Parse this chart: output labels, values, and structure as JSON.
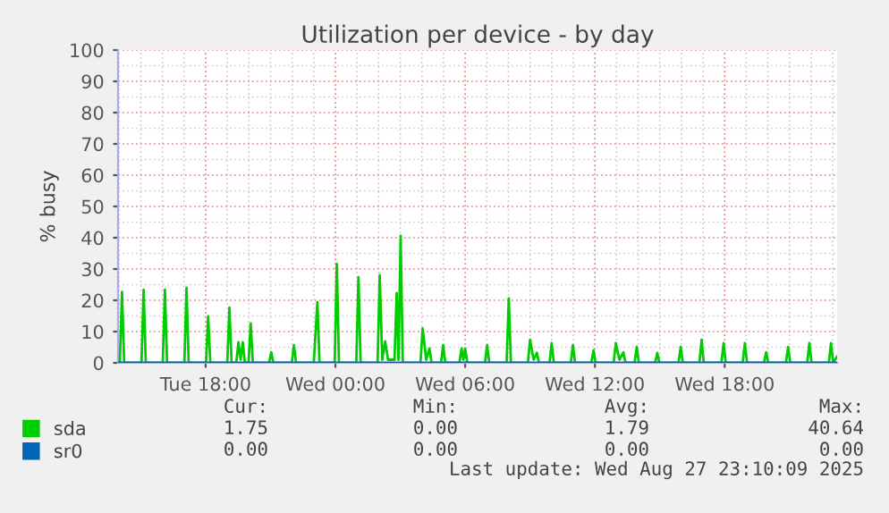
{
  "chart_data": {
    "type": "line",
    "title": "Utilization per device - by day",
    "ylabel": "% busy",
    "xlim": [
      "2025-08-26T13:57",
      "2025-08-27T23:12"
    ],
    "xticks": [
      {
        "value": "2025-08-26T18:00",
        "label": "Tue 18:00"
      },
      {
        "value": "2025-08-27T00:00",
        "label": "Wed 00:00"
      },
      {
        "value": "2025-08-27T06:00",
        "label": "Wed 06:00"
      },
      {
        "value": "2025-08-27T12:00",
        "label": "Wed 12:00"
      },
      {
        "value": "2025-08-27T18:00",
        "label": "Wed 18:00"
      }
    ],
    "ylim": [
      0,
      100
    ],
    "yticks": [
      0,
      10,
      20,
      30,
      40,
      50,
      60,
      70,
      80,
      90,
      100
    ],
    "grid": true,
    "legend": "bottom left",
    "marker": "none",
    "line_style": "solid",
    "series": [
      {
        "name": "sda",
        "color": "#00cc00",
        "x": [
          "2025-08-26T13:57",
          "2025-08-26T14:02",
          "2025-08-26T14:08",
          "2025-08-26T14:14",
          "2025-08-26T15:02",
          "2025-08-26T15:08",
          "2025-08-26T15:14",
          "2025-08-26T16:01",
          "2025-08-26T16:07",
          "2025-08-26T16:13",
          "2025-08-26T17:01",
          "2025-08-26T17:07",
          "2025-08-26T17:13",
          "2025-08-26T18:01",
          "2025-08-26T18:07",
          "2025-08-26T18:13",
          "2025-08-26T19:00",
          "2025-08-26T19:06",
          "2025-08-26T19:12",
          "2025-08-26T19:25",
          "2025-08-26T19:31",
          "2025-08-26T19:37",
          "2025-08-26T19:43",
          "2025-08-26T19:49",
          "2025-08-26T19:59",
          "2025-08-26T20:05",
          "2025-08-26T20:11",
          "2025-08-26T20:56",
          "2025-08-26T21:02",
          "2025-08-26T21:08",
          "2025-08-26T21:59",
          "2025-08-26T22:05",
          "2025-08-26T22:11",
          "2025-08-26T23:00",
          "2025-08-26T23:10",
          "2025-08-26T23:16",
          "2025-08-26T23:58",
          "2025-08-27T00:04",
          "2025-08-27T00:10",
          "2025-08-27T00:58",
          "2025-08-27T01:04",
          "2025-08-27T01:10",
          "2025-08-27T01:57",
          "2025-08-27T02:03",
          "2025-08-27T02:10",
          "2025-08-27T02:18",
          "2025-08-27T02:26",
          "2025-08-27T02:44",
          "2025-08-27T02:50",
          "2025-08-27T02:55",
          "2025-08-27T03:01",
          "2025-08-27T03:07",
          "2025-08-27T03:56",
          "2025-08-27T04:02",
          "2025-08-27T04:12",
          "2025-08-27T04:21",
          "2025-08-27T04:27",
          "2025-08-27T04:53",
          "2025-08-27T04:59",
          "2025-08-27T05:05",
          "2025-08-27T05:44",
          "2025-08-27T05:50",
          "2025-08-27T05:55",
          "2025-08-27T06:00",
          "2025-08-27T06:06",
          "2025-08-27T06:55",
          "2025-08-27T07:01",
          "2025-08-27T07:07",
          "2025-08-27T07:55",
          "2025-08-27T08:01",
          "2025-08-27T08:07",
          "2025-08-27T08:54",
          "2025-08-27T09:00",
          "2025-08-27T09:10",
          "2025-08-27T09:19",
          "2025-08-27T09:25",
          "2025-08-27T09:54",
          "2025-08-27T10:00",
          "2025-08-27T10:06",
          "2025-08-27T10:53",
          "2025-08-27T10:59",
          "2025-08-27T11:05",
          "2025-08-27T11:50",
          "2025-08-27T11:56",
          "2025-08-27T12:02",
          "2025-08-27T12:52",
          "2025-08-27T12:58",
          "2025-08-27T13:08",
          "2025-08-27T13:19",
          "2025-08-27T13:25",
          "2025-08-27T13:50",
          "2025-08-27T13:56",
          "2025-08-27T14:02",
          "2025-08-27T14:47",
          "2025-08-27T14:53",
          "2025-08-27T14:59",
          "2025-08-27T15:52",
          "2025-08-27T15:58",
          "2025-08-27T16:04",
          "2025-08-27T16:50",
          "2025-08-27T16:56",
          "2025-08-27T17:02",
          "2025-08-27T17:51",
          "2025-08-27T17:57",
          "2025-08-27T18:03",
          "2025-08-27T18:50",
          "2025-08-27T18:56",
          "2025-08-27T19:02",
          "2025-08-27T19:49",
          "2025-08-27T19:55",
          "2025-08-27T20:01",
          "2025-08-27T20:50",
          "2025-08-27T20:56",
          "2025-08-27T21:02",
          "2025-08-27T21:49",
          "2025-08-27T21:55",
          "2025-08-27T22:01",
          "2025-08-27T22:49",
          "2025-08-27T22:55",
          "2025-08-27T23:01",
          "2025-08-27T23:12"
        ],
        "values": [
          0,
          0,
          22.7,
          0,
          0,
          23.4,
          0,
          0,
          23.4,
          0,
          0,
          24,
          0,
          0,
          14.9,
          0,
          0,
          17.7,
          0,
          0,
          6.6,
          1,
          6.6,
          0,
          0,
          12.6,
          0,
          0,
          3.4,
          0,
          0,
          5.7,
          0,
          0,
          19.4,
          0,
          0,
          31.6,
          0,
          0,
          27.4,
          0,
          0,
          28,
          1,
          6.9,
          1,
          1,
          22.3,
          1,
          40.6,
          0,
          0,
          11,
          1,
          4.6,
          0,
          0,
          5.7,
          0,
          0,
          4.6,
          1,
          4.6,
          0,
          0,
          5.7,
          0,
          0,
          20.6,
          0,
          0,
          7.4,
          1,
          3.2,
          0,
          0,
          6.3,
          0,
          0,
          5.7,
          0,
          0,
          4,
          0,
          0,
          6.3,
          1,
          3.4,
          0,
          0,
          5.1,
          0,
          0,
          3.2,
          0,
          0,
          5.1,
          0,
          0,
          7.4,
          0,
          0,
          6.3,
          0,
          0,
          6.3,
          0,
          0,
          3.4,
          0,
          0,
          5.1,
          0,
          0,
          6.3,
          0,
          0,
          6.3,
          0,
          2
        ]
      },
      {
        "name": "sr0",
        "color": "#0066b3",
        "x": [
          "2025-08-26T13:57",
          "2025-08-27T23:12"
        ],
        "values": [
          0,
          0
        ]
      }
    ],
    "annotations": [
      "Cur:",
      "Min:",
      "Avg:",
      "Max:",
      "1.75",
      "0.00",
      "1.79",
      "40.64",
      "0.00",
      "0.00",
      "0.00",
      "0.00",
      "Last update: Wed Aug 27 23:10:09 2025"
    ]
  }
}
